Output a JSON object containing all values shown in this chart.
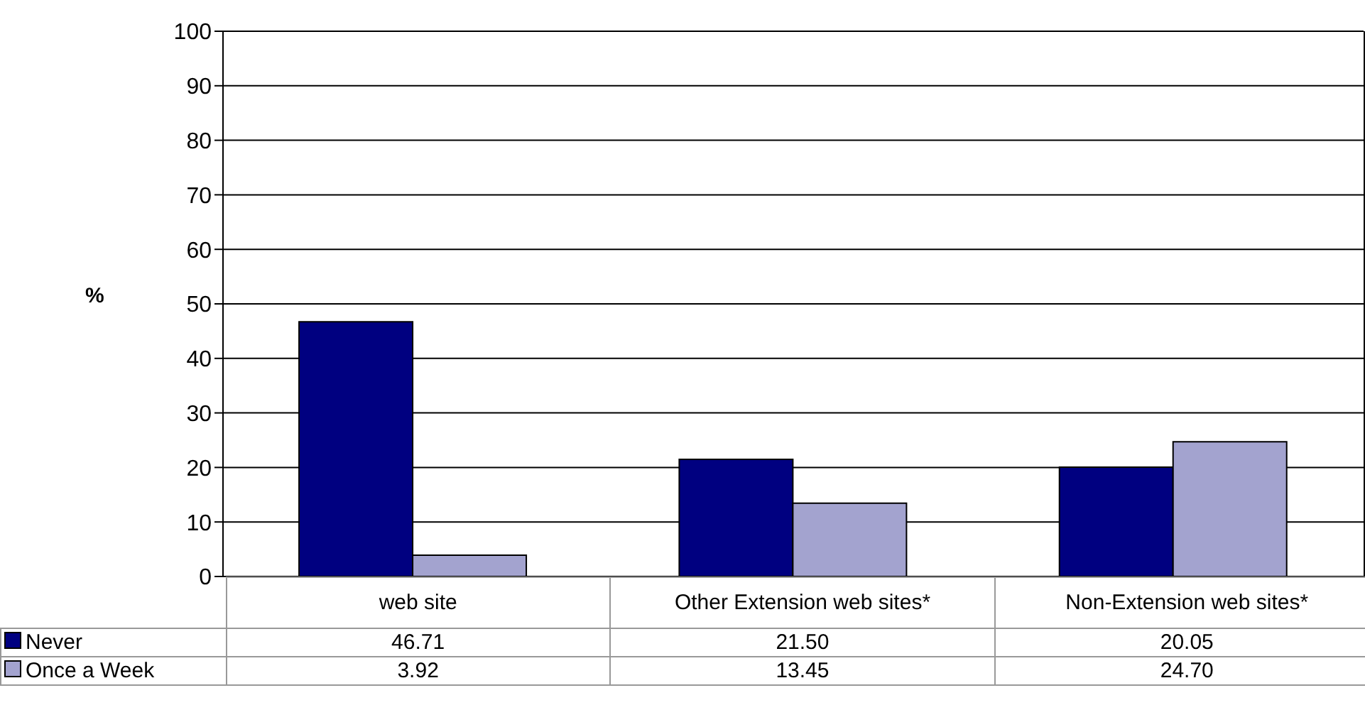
{
  "chart_data": {
    "type": "bar",
    "ylabel": "%",
    "categories": [
      "web site",
      "Other Extension web sites*",
      "Non-Extension web sites*"
    ],
    "series": [
      {
        "name": "Never",
        "color": "#000080",
        "values": [
          46.71,
          21.5,
          20.05
        ],
        "value_labels": [
          "46.71",
          "21.50",
          "20.05"
        ]
      },
      {
        "name": "Once a Week",
        "color": "#a3a3cf",
        "values": [
          3.92,
          13.45,
          24.7
        ],
        "value_labels": [
          "3.92",
          "13.45",
          "24.70"
        ]
      }
    ],
    "ylim": [
      0,
      100
    ],
    "yticks": [
      0,
      10,
      20,
      30,
      40,
      50,
      60,
      70,
      80,
      90,
      100
    ],
    "grid": "y",
    "legend": "bottom"
  }
}
